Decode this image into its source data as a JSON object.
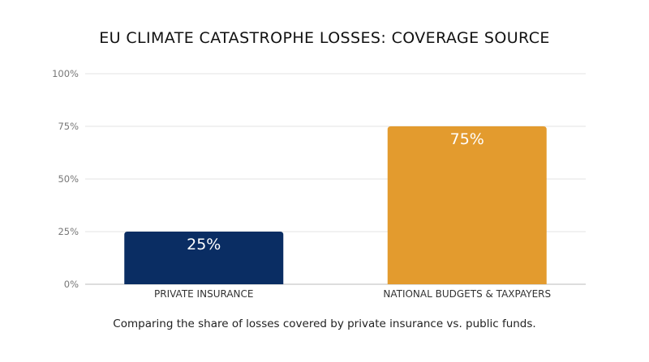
{
  "chart_data": {
    "type": "bar",
    "title": "EU CLIMATE CATASTROPHE LOSSES: COVERAGE SOURCE",
    "subtitle": "Comparing the share of losses covered by private insurance vs. public funds.",
    "categories": [
      "PRIVATE INSURANCE",
      "NATIONAL BUDGETS & TAXPAYERS"
    ],
    "values": [
      25,
      75
    ],
    "data_labels": [
      "25%",
      "75%"
    ],
    "bar_colors": [
      "#0a2d63",
      "#e39b2e"
    ],
    "ylim": [
      0,
      100
    ],
    "yticks": [
      0,
      25,
      50,
      75,
      100
    ],
    "ytick_labels": [
      "0%",
      "25%",
      "50%",
      "75%",
      "100%"
    ],
    "xlabel": "",
    "ylabel": "",
    "grid": true,
    "legend": "none"
  }
}
